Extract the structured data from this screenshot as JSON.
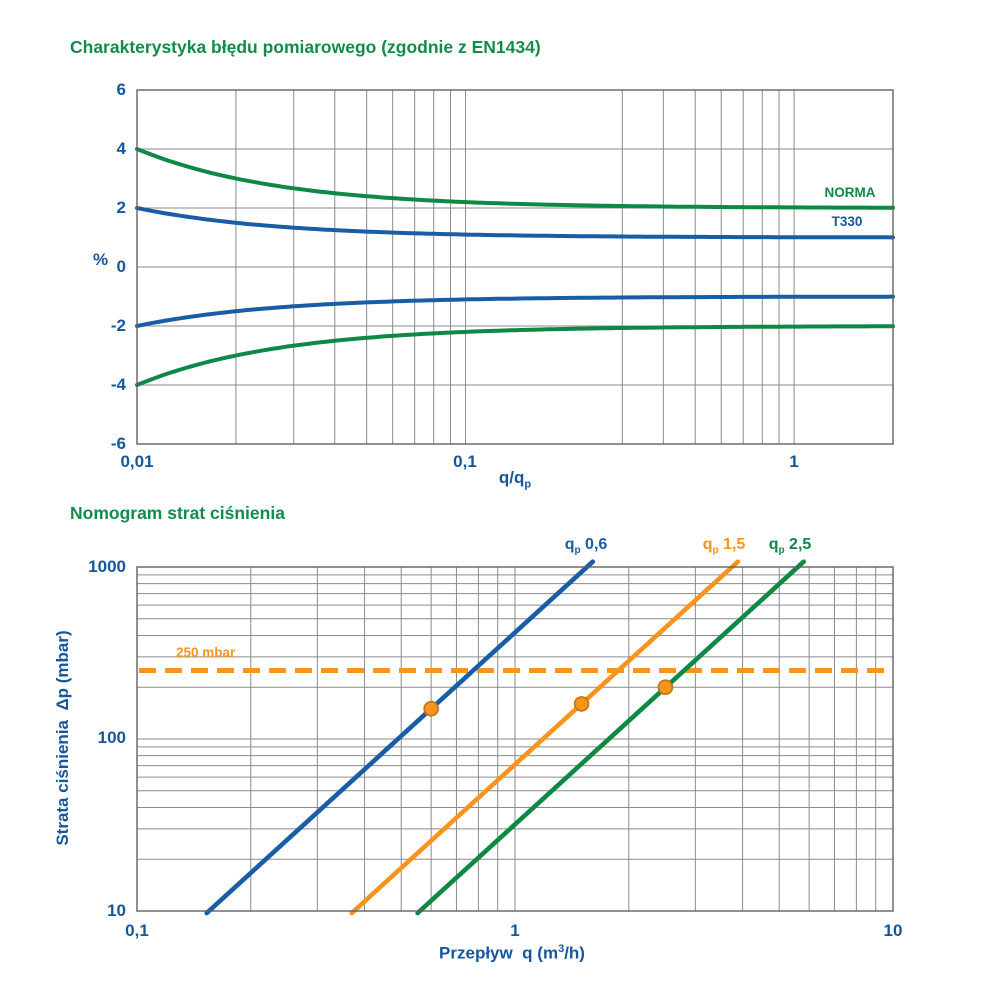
{
  "page": {
    "background": "#ffffff"
  },
  "colors": {
    "green": "#0d8845",
    "blue": "#185da6",
    "orange": "#f7941d",
    "marker_stroke": "#c96f12",
    "grid": "#8a8a8a",
    "border": "#606060",
    "text_blue": "#15569d",
    "title_green": "#128c4a"
  },
  "chart_data": [
    {
      "type": "line",
      "title": "Charakterystyka błędu pomiarowego (zgodnie z EN1434)",
      "xlabel_plain": "q/qp",
      "xlabel_parts": {
        "pre": "q/q",
        "sub": "p"
      },
      "ylabel": "%",
      "x_scale": "log",
      "y_scale": "linear",
      "xlim": [
        0.01,
        2
      ],
      "ylim": [
        -6,
        6
      ],
      "x_ticks": [
        {
          "v": 0.01,
          "label": "0,01"
        },
        {
          "v": 0.1,
          "label": "0,1"
        },
        {
          "v": 1,
          "label": "1"
        }
      ],
      "y_ticks": [
        {
          "v": 6,
          "label": "6"
        },
        {
          "v": 4,
          "label": "4"
        },
        {
          "v": 2,
          "label": "2"
        },
        {
          "v": 0,
          "label": "0"
        },
        {
          "v": -2,
          "label": "-2"
        },
        {
          "v": -4,
          "label": "-4"
        },
        {
          "v": -6,
          "label": "-6"
        }
      ],
      "grid_x_values": [
        0.01,
        0.02,
        0.03,
        0.04,
        0.05,
        0.06,
        0.07,
        0.08,
        0.09,
        0.1,
        0.3,
        0.4,
        0.5,
        0.6,
        0.7,
        0.8,
        0.9,
        1,
        2
      ],
      "grid_y_values": [
        -6,
        -4,
        -2,
        0,
        2,
        4,
        6
      ],
      "series": [
        {
          "name": "NORMA",
          "color_key": "green",
          "description": "error limit ±(2 + 0.02·qp/q) %",
          "base_pct": 2,
          "coef": 0.02,
          "mirrored": true,
          "points_upper": [
            [
              0.01,
              4
            ],
            [
              0.02,
              3
            ],
            [
              0.04,
              2.5
            ],
            [
              0.1,
              2.2
            ],
            [
              0.2,
              2.1
            ],
            [
              0.5,
              2.04
            ],
            [
              1,
              2.02
            ],
            [
              2,
              2.01
            ]
          ]
        },
        {
          "name": "T330",
          "color_key": "blue",
          "description": "error curve ±(1 + 0.01·qp/q) %",
          "base_pct": 1,
          "coef": 0.01,
          "mirrored": true,
          "points_upper": [
            [
              0.01,
              2
            ],
            [
              0.02,
              1.5
            ],
            [
              0.04,
              1.25
            ],
            [
              0.1,
              1.1
            ],
            [
              0.2,
              1.05
            ],
            [
              0.5,
              1.02
            ],
            [
              1,
              1.01
            ],
            [
              2,
              1.005
            ]
          ]
        }
      ],
      "legend": {
        "position": "inside-right",
        "entries": [
          "NORMA",
          "T330"
        ]
      }
    },
    {
      "type": "line",
      "title": "Nomogram strat ciśnienia",
      "xlabel_plain": "Przepływ q (m3/h)",
      "xlabel_parts": {
        "pre": "Przepływ  q (m",
        "sup": "3",
        "post": "/h)"
      },
      "ylabel": "Strata ciśnienia  Δp (mbar)",
      "x_scale": "log",
      "y_scale": "log",
      "xlim": [
        0.1,
        10
      ],
      "ylim": [
        10,
        1000
      ],
      "x_ticks": [
        {
          "v": 0.1,
          "label": "0,1"
        },
        {
          "v": 1,
          "label": "1"
        },
        {
          "v": 10,
          "label": "10"
        }
      ],
      "y_ticks": [
        {
          "v": 1000,
          "label": "1000"
        },
        {
          "v": 100,
          "label": "100"
        },
        {
          "v": 10,
          "label": "10"
        }
      ],
      "grid": "log minor lines on both axes",
      "series": [
        {
          "name": "qp 0,6",
          "label_parts": {
            "pre": "q",
            "sub": "p",
            "post": " 0,6"
          },
          "color_key": "blue",
          "slope": "Δp ∝ q²",
          "endpoints": [
            [
              0.155,
              10
            ],
            [
              1.55,
              1000
            ]
          ],
          "marker": {
            "q": 0.6,
            "dp": 150
          },
          "points": [
            [
              0.155,
              10
            ],
            [
              0.6,
              150
            ],
            [
              1.55,
              1000
            ]
          ]
        },
        {
          "name": "qp 1,5",
          "label_parts": {
            "pre": "q",
            "sub": "p",
            "post": " 1,5"
          },
          "color_key": "orange",
          "slope": "Δp ∝ q²",
          "endpoints": [
            [
              0.375,
              10
            ],
            [
              3.75,
              1000
            ]
          ],
          "marker": {
            "q": 1.5,
            "dp": 160
          },
          "points": [
            [
              0.375,
              10
            ],
            [
              1.5,
              160
            ],
            [
              3.75,
              1000
            ]
          ]
        },
        {
          "name": "qp 2,5",
          "label_parts": {
            "pre": "q",
            "sub": "p",
            "post": " 2,5"
          },
          "color_key": "green",
          "slope": "Δp ∝ q²",
          "endpoints": [
            [
              0.56,
              10
            ],
            [
              5.6,
              1000
            ]
          ],
          "marker": {
            "q": 2.5,
            "dp": 200
          },
          "points": [
            [
              0.56,
              10
            ],
            [
              2.5,
              200
            ],
            [
              5.6,
              1000
            ]
          ]
        }
      ],
      "reference_line": {
        "value": 250,
        "label": "250 mbar",
        "style": "dashed",
        "color_key": "orange"
      }
    }
  ]
}
